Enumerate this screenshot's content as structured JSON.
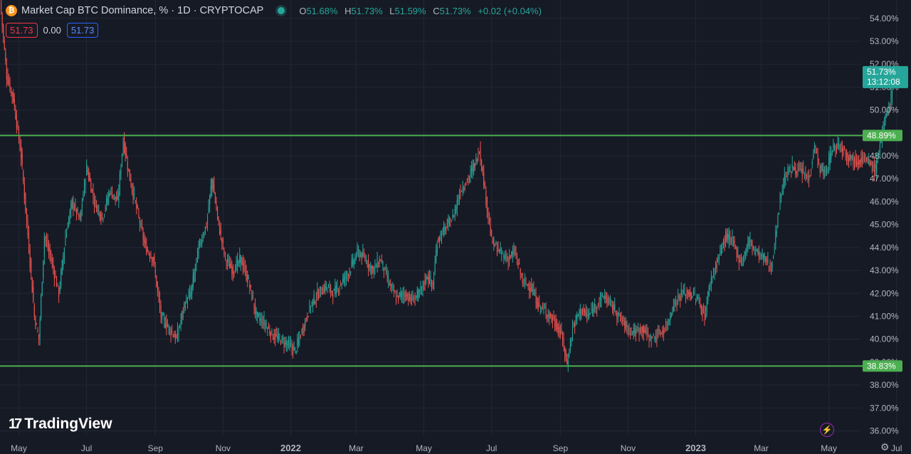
{
  "header": {
    "coin_symbol": "₿",
    "title": "Market Cap BTC Dominance, % · 1D · CRYPTOCAP",
    "ohlc": {
      "o_label": "O",
      "o_value": "51.68%",
      "h_label": "H",
      "h_value": "51.73%",
      "l_label": "L",
      "l_value": "51.59%",
      "c_label": "C",
      "c_value": "51.73%",
      "change": "+0.02 (+0.04%)"
    },
    "box_sell": "51.73",
    "box_spread": "0.00",
    "box_buy": "51.73"
  },
  "branding": {
    "logo_mark": "17",
    "logo_text": "TradingView"
  },
  "icons": {
    "bolt": "lightning-icon",
    "gear": "gear-icon"
  },
  "colors": {
    "up": "#26a69a",
    "down": "#ef5350",
    "level": "#4caf50",
    "background": "#161a25"
  },
  "chart_data": {
    "type": "candlestick",
    "ylim": [
      35.8,
      54.8
    ],
    "ytick_values": [
      36,
      37,
      38,
      39,
      40,
      41,
      42,
      43,
      44,
      45,
      46,
      47,
      48,
      49,
      50,
      51,
      52,
      53,
      54
    ],
    "ytick_labels": [
      "36.00%",
      "37.00%",
      "38.00%",
      "39.00%",
      "40.00%",
      "41.00%",
      "42.00%",
      "43.00%",
      "44.00%",
      "45.00%",
      "46.00%",
      "47.00%",
      "48.00%",
      "49.00%",
      "50.00%",
      "51.00%",
      "52.00%",
      "53.00%",
      "54.00%"
    ],
    "xlim": [
      "2021-04-14",
      "2023-07-14"
    ],
    "xticks": [
      {
        "label": "May",
        "date": "2021-05-01"
      },
      {
        "label": "Jul",
        "date": "2021-07-01"
      },
      {
        "label": "Sep",
        "date": "2021-09-01"
      },
      {
        "label": "Nov",
        "date": "2021-11-01"
      },
      {
        "label": "2022",
        "date": "2022-01-01",
        "bold": true
      },
      {
        "label": "Mar",
        "date": "2022-03-01"
      },
      {
        "label": "May",
        "date": "2022-05-01"
      },
      {
        "label": "Jul",
        "date": "2022-07-01"
      },
      {
        "label": "Sep",
        "date": "2022-09-01"
      },
      {
        "label": "Nov",
        "date": "2022-11-01"
      },
      {
        "label": "2023",
        "date": "2023-01-01",
        "bold": true
      },
      {
        "label": "Mar",
        "date": "2023-03-01"
      },
      {
        "label": "May",
        "date": "2023-05-01"
      },
      {
        "label": "Jul",
        "date": "2023-07-01"
      }
    ],
    "levels": [
      {
        "value": 48.89,
        "label": "48.89%"
      },
      {
        "value": 38.83,
        "label": "38.83%"
      }
    ],
    "last_price": {
      "value": 51.73,
      "label": "51.73%",
      "countdown": "13:12:08"
    },
    "series": [
      {
        "date": "2021-04-14",
        "value": 54.8
      },
      {
        "date": "2021-04-20",
        "value": 51.5
      },
      {
        "date": "2021-04-26",
        "value": 50.5
      },
      {
        "date": "2021-05-03",
        "value": 48.0
      },
      {
        "date": "2021-05-10",
        "value": 44.0
      },
      {
        "date": "2021-05-15",
        "value": 41.0
      },
      {
        "date": "2021-05-19",
        "value": 40.0
      },
      {
        "date": "2021-05-24",
        "value": 44.5
      },
      {
        "date": "2021-05-30",
        "value": 43.5
      },
      {
        "date": "2021-06-06",
        "value": 42.0
      },
      {
        "date": "2021-06-12",
        "value": 44.5
      },
      {
        "date": "2021-06-18",
        "value": 46.0
      },
      {
        "date": "2021-06-25",
        "value": 45.2
      },
      {
        "date": "2021-07-01",
        "value": 47.5
      },
      {
        "date": "2021-07-08",
        "value": 46.0
      },
      {
        "date": "2021-07-15",
        "value": 45.3
      },
      {
        "date": "2021-07-22",
        "value": 46.5
      },
      {
        "date": "2021-07-29",
        "value": 46.0
      },
      {
        "date": "2021-08-03",
        "value": 48.7
      },
      {
        "date": "2021-08-09",
        "value": 47.0
      },
      {
        "date": "2021-08-16",
        "value": 45.5
      },
      {
        "date": "2021-08-23",
        "value": 44.0
      },
      {
        "date": "2021-08-30",
        "value": 43.5
      },
      {
        "date": "2021-09-06",
        "value": 41.0
      },
      {
        "date": "2021-09-13",
        "value": 40.5
      },
      {
        "date": "2021-09-20",
        "value": 40.0
      },
      {
        "date": "2021-09-27",
        "value": 41.5
      },
      {
        "date": "2021-10-03",
        "value": 42.0
      },
      {
        "date": "2021-10-10",
        "value": 44.0
      },
      {
        "date": "2021-10-17",
        "value": 45.0
      },
      {
        "date": "2021-10-22",
        "value": 47.0
      },
      {
        "date": "2021-10-28",
        "value": 45.0
      },
      {
        "date": "2021-11-03",
        "value": 43.5
      },
      {
        "date": "2021-11-10",
        "value": 43.0
      },
      {
        "date": "2021-11-17",
        "value": 43.5
      },
      {
        "date": "2021-11-24",
        "value": 42.5
      },
      {
        "date": "2021-12-01",
        "value": 41.0
      },
      {
        "date": "2021-12-08",
        "value": 40.7
      },
      {
        "date": "2021-12-15",
        "value": 40.2
      },
      {
        "date": "2021-12-22",
        "value": 40.0
      },
      {
        "date": "2021-12-29",
        "value": 39.8
      },
      {
        "date": "2022-01-05",
        "value": 39.5
      },
      {
        "date": "2022-01-12",
        "value": 40.5
      },
      {
        "date": "2022-01-19",
        "value": 41.5
      },
      {
        "date": "2022-01-26",
        "value": 42.0
      },
      {
        "date": "2022-02-02",
        "value": 42.3
      },
      {
        "date": "2022-02-09",
        "value": 42.0
      },
      {
        "date": "2022-02-16",
        "value": 42.5
      },
      {
        "date": "2022-02-23",
        "value": 43.0
      },
      {
        "date": "2022-03-02",
        "value": 43.8
      },
      {
        "date": "2022-03-09",
        "value": 43.5
      },
      {
        "date": "2022-03-16",
        "value": 43.0
      },
      {
        "date": "2022-03-23",
        "value": 43.5
      },
      {
        "date": "2022-03-30",
        "value": 42.5
      },
      {
        "date": "2022-04-06",
        "value": 41.8
      },
      {
        "date": "2022-04-13",
        "value": 42.0
      },
      {
        "date": "2022-04-20",
        "value": 41.7
      },
      {
        "date": "2022-04-27",
        "value": 42.0
      },
      {
        "date": "2022-05-04",
        "value": 42.8
      },
      {
        "date": "2022-05-09",
        "value": 42.3
      },
      {
        "date": "2022-05-13",
        "value": 44.3
      },
      {
        "date": "2022-05-20",
        "value": 44.8
      },
      {
        "date": "2022-05-27",
        "value": 45.3
      },
      {
        "date": "2022-06-03",
        "value": 46.5
      },
      {
        "date": "2022-06-10",
        "value": 47.0
      },
      {
        "date": "2022-06-17",
        "value": 47.8
      },
      {
        "date": "2022-06-20",
        "value": 48.3
      },
      {
        "date": "2022-06-25",
        "value": 46.5
      },
      {
        "date": "2022-07-01",
        "value": 44.3
      },
      {
        "date": "2022-07-08",
        "value": 43.8
      },
      {
        "date": "2022-07-15",
        "value": 43.5
      },
      {
        "date": "2022-07-22",
        "value": 43.8
      },
      {
        "date": "2022-07-29",
        "value": 42.5
      },
      {
        "date": "2022-08-05",
        "value": 42.3
      },
      {
        "date": "2022-08-12",
        "value": 41.5
      },
      {
        "date": "2022-08-19",
        "value": 41.2
      },
      {
        "date": "2022-08-26",
        "value": 40.8
      },
      {
        "date": "2022-09-02",
        "value": 40.2
      },
      {
        "date": "2022-09-07",
        "value": 38.9
      },
      {
        "date": "2022-09-12",
        "value": 40.5
      },
      {
        "date": "2022-09-19",
        "value": 41.3
      },
      {
        "date": "2022-09-26",
        "value": 41.0
      },
      {
        "date": "2022-10-03",
        "value": 41.5
      },
      {
        "date": "2022-10-10",
        "value": 41.9
      },
      {
        "date": "2022-10-17",
        "value": 41.5
      },
      {
        "date": "2022-10-24",
        "value": 41.0
      },
      {
        "date": "2022-10-31",
        "value": 40.5
      },
      {
        "date": "2022-11-07",
        "value": 40.3
      },
      {
        "date": "2022-11-14",
        "value": 40.5
      },
      {
        "date": "2022-11-21",
        "value": 40.0
      },
      {
        "date": "2022-11-28",
        "value": 40.2
      },
      {
        "date": "2022-12-05",
        "value": 40.5
      },
      {
        "date": "2022-12-12",
        "value": 41.5
      },
      {
        "date": "2022-12-19",
        "value": 42.0
      },
      {
        "date": "2022-12-26",
        "value": 42.0
      },
      {
        "date": "2023-01-02",
        "value": 41.8
      },
      {
        "date": "2023-01-09",
        "value": 41.0
      },
      {
        "date": "2023-01-14",
        "value": 42.5
      },
      {
        "date": "2023-01-21",
        "value": 43.5
      },
      {
        "date": "2023-01-28",
        "value": 44.5
      },
      {
        "date": "2023-02-04",
        "value": 44.2
      },
      {
        "date": "2023-02-11",
        "value": 43.3
      },
      {
        "date": "2023-02-18",
        "value": 44.3
      },
      {
        "date": "2023-02-25",
        "value": 43.8
      },
      {
        "date": "2023-03-04",
        "value": 43.5
      },
      {
        "date": "2023-03-10",
        "value": 43.1
      },
      {
        "date": "2023-03-14",
        "value": 44.5
      },
      {
        "date": "2023-03-18",
        "value": 46.2
      },
      {
        "date": "2023-03-23",
        "value": 47.2
      },
      {
        "date": "2023-03-30",
        "value": 47.5
      },
      {
        "date": "2023-04-06",
        "value": 47.3
      },
      {
        "date": "2023-04-13",
        "value": 47.0
      },
      {
        "date": "2023-04-18",
        "value": 48.5
      },
      {
        "date": "2023-04-22",
        "value": 47.5
      },
      {
        "date": "2023-04-28",
        "value": 47.2
      },
      {
        "date": "2023-05-04",
        "value": 48.3
      },
      {
        "date": "2023-05-11",
        "value": 48.5
      },
      {
        "date": "2023-05-18",
        "value": 48.0
      },
      {
        "date": "2023-05-25",
        "value": 47.8
      },
      {
        "date": "2023-06-01",
        "value": 47.9
      },
      {
        "date": "2023-06-08",
        "value": 47.6
      },
      {
        "date": "2023-06-12",
        "value": 47.4
      },
      {
        "date": "2023-06-16",
        "value": 48.5
      },
      {
        "date": "2023-06-19",
        "value": 49.2
      },
      {
        "date": "2023-06-23",
        "value": 50.0
      },
      {
        "date": "2023-06-26",
        "value": 50.6
      },
      {
        "date": "2023-06-28",
        "value": 51.5
      },
      {
        "date": "2023-06-29",
        "value": 51.73
      }
    ]
  }
}
